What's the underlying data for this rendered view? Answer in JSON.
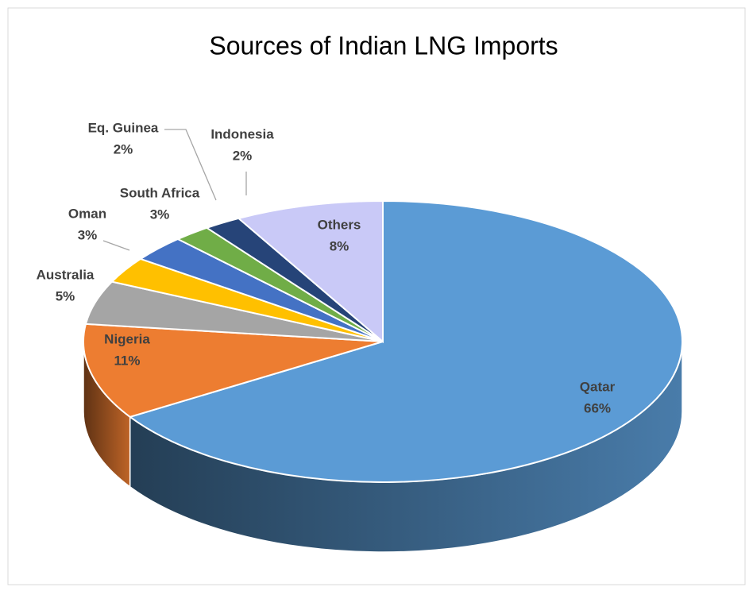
{
  "chart_data": {
    "type": "pie",
    "title": "Sources of Indian LNG Imports",
    "categories": [
      "Qatar",
      "Nigeria",
      "Australia",
      "Oman",
      "South Africa",
      "Eq. Guinea",
      "Indonesia",
      "Others"
    ],
    "values": [
      66,
      11,
      5,
      3,
      3,
      2,
      2,
      8
    ],
    "value_labels": [
      "66%",
      "11%",
      "5%",
      "3%",
      "3%",
      "2%",
      "2%",
      "8%"
    ],
    "colors": [
      "#5b9bd5",
      "#ed7d31",
      "#a5a5a5",
      "#ffc000",
      "#4472c4",
      "#70ad47",
      "#264478",
      "#c9c9f7"
    ]
  }
}
